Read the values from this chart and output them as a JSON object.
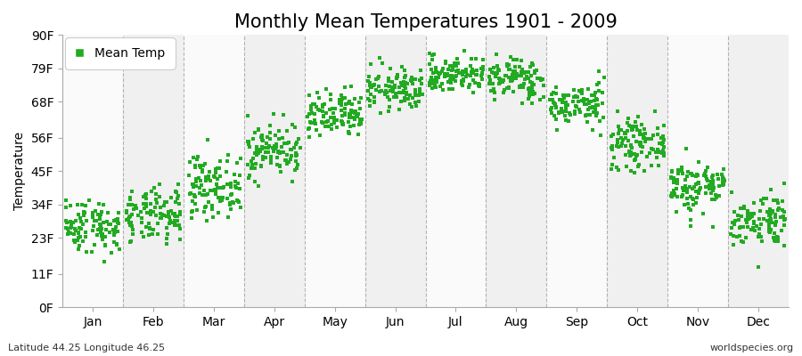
{
  "title": "Monthly Mean Temperatures 1901 - 2009",
  "ylabel": "Temperature",
  "xlabel": "",
  "footnote_left": "Latitude 44.25 Longitude 46.25",
  "footnote_right": "worldspecies.org",
  "legend_label": "Mean Temp",
  "dot_color": "#22aa22",
  "dot_size": 5,
  "background_color": "#ffffff",
  "band_color_odd": "#f0f0f0",
  "band_color_even": "#fafafa",
  "dashed_line_color": "#888888",
  "yticks": [
    0,
    11,
    23,
    34,
    45,
    56,
    68,
    79,
    90
  ],
  "ytick_labels": [
    "0F",
    "11F",
    "23F",
    "34F",
    "45F",
    "56F",
    "68F",
    "79F",
    "90F"
  ],
  "ylim": [
    0,
    90
  ],
  "months": [
    "Jan",
    "Feb",
    "Mar",
    "Apr",
    "May",
    "Jun",
    "Jul",
    "Aug",
    "Sep",
    "Oct",
    "Nov",
    "Dec"
  ],
  "title_fontsize": 15,
  "axis_fontsize": 10,
  "tick_fontsize": 10,
  "monthly_mean_temps_F": {
    "Jan": 27.0,
    "Feb": 30.0,
    "Mar": 40.0,
    "Apr": 52.0,
    "May": 63.0,
    "Jun": 72.0,
    "Jul": 77.0,
    "Aug": 75.5,
    "Sep": 67.0,
    "Oct": 54.0,
    "Nov": 40.0,
    "Dec": 29.0
  },
  "monthly_std_temps_F": {
    "Jan": 4.5,
    "Feb": 4.5,
    "Mar": 5.0,
    "Apr": 4.5,
    "May": 4.0,
    "Jun": 3.5,
    "Jul": 3.0,
    "Aug": 3.5,
    "Sep": 3.5,
    "Oct": 4.0,
    "Nov": 4.5,
    "Dec": 4.5
  },
  "n_years": 109,
  "seed": 42
}
